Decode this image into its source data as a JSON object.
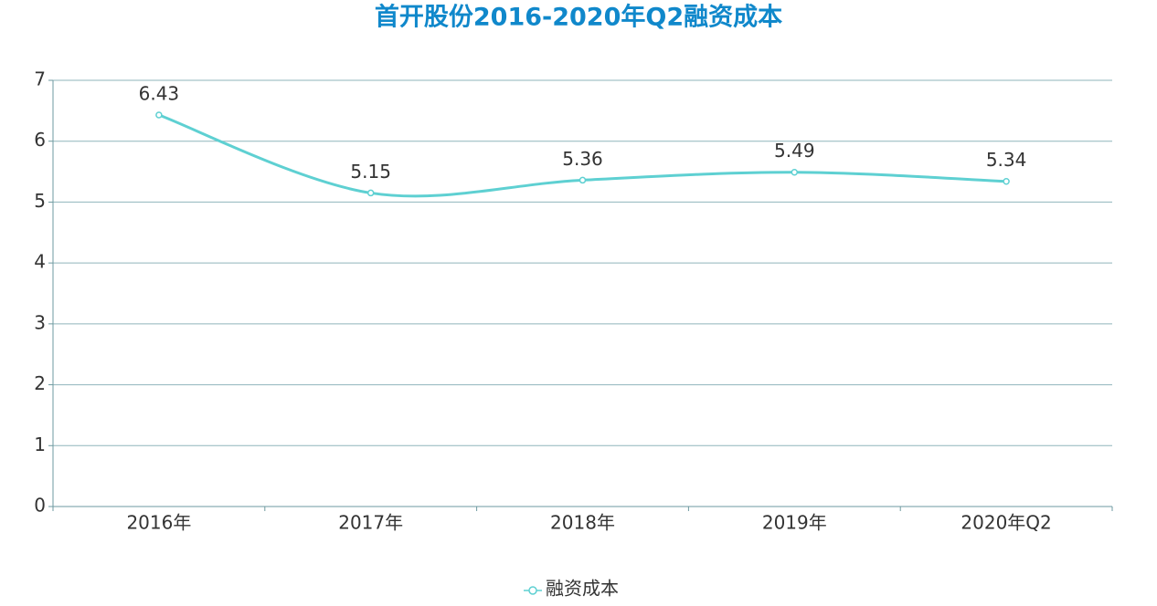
{
  "chart_data": {
    "type": "line",
    "title": "首开股份2016-2020年Q2融资成本",
    "categories": [
      "2016年",
      "2017年",
      "2018年",
      "2019年",
      "2020年Q2"
    ],
    "series": [
      {
        "name": "融资成本",
        "color": "#5ed0d2",
        "values": [
          6.43,
          5.15,
          5.36,
          5.49,
          5.34
        ]
      }
    ],
    "ylim": [
      0,
      7
    ],
    "yticks": [
      0,
      1,
      2,
      3,
      4,
      5,
      6,
      7
    ],
    "grid": true,
    "smooth": true,
    "data_labels": true,
    "legend": "bottom"
  }
}
